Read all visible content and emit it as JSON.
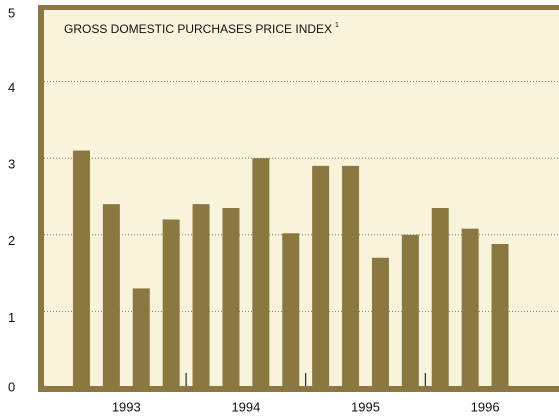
{
  "chart_data": {
    "type": "bar",
    "title": "GROSS DOMESTIC PURCHASES PRICE INDEX",
    "title_note": "1",
    "categories": [
      null,
      null,
      null,
      null,
      null,
      null,
      null,
      null,
      null,
      null,
      null,
      null,
      null,
      null,
      null
    ],
    "values": [
      3.1,
      2.4,
      1.3,
      2.2,
      2.4,
      2.35,
      3.0,
      2.02,
      2.9,
      2.9,
      1.7,
      2.0,
      2.35,
      2.08,
      1.88
    ],
    "year_labels": [
      "1993",
      "1994",
      "1995",
      "1996"
    ],
    "color": "#8b7840",
    "ylim": [
      0,
      5
    ],
    "yticks": [
      0,
      1,
      2,
      3,
      4,
      5
    ],
    "grid": true
  }
}
